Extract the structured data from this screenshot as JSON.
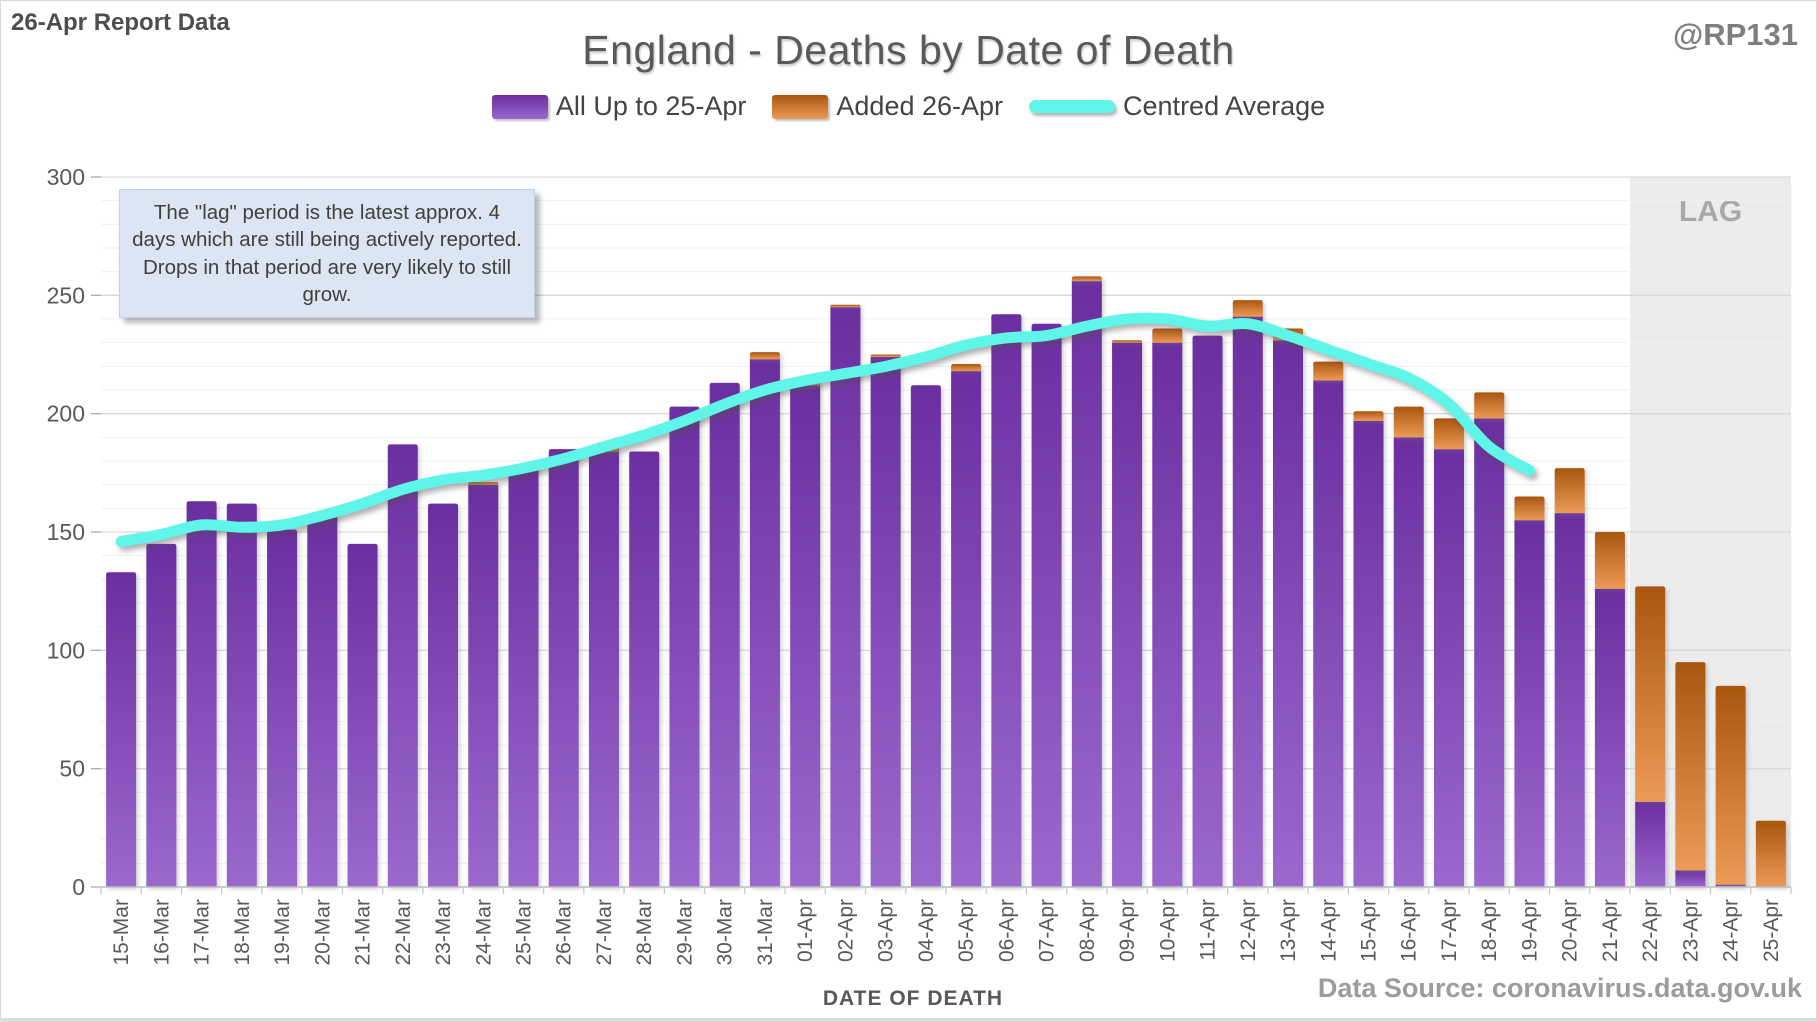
{
  "header": {
    "report_label": "26-Apr Report Data",
    "handle": "@RP131",
    "title": "England - Deaths by Date of Death"
  },
  "legend": [
    {
      "label": "All Up to 25-Apr",
      "swatch": "purple-gradient-bar"
    },
    {
      "label": "Added 26-Apr",
      "swatch": "orange-gradient-bar"
    },
    {
      "label": "Centred Average",
      "swatch": "cyan-line"
    }
  ],
  "annotation": {
    "text": "The \"lag\" period is the latest approx. 4 days which are still being actively reported.  Drops in that period are very likely to still grow."
  },
  "lag": {
    "label": "LAG",
    "start_category": "22-Apr"
  },
  "axes": {
    "y": {
      "min": 0,
      "max": 300,
      "major_step": 50,
      "minor_step": 10
    },
    "x": {
      "title": "DATE OF DEATH"
    }
  },
  "footer": {
    "source": "Data Source: coronavirus.data.gov.uk"
  },
  "colors": {
    "purple_top": "#6b2e9f",
    "purple_bottom": "#9b68ce",
    "orange_top": "#a9560f",
    "orange_bottom": "#ec9a57",
    "average_line": "#5ff5e8",
    "lag_fill": "#ececec",
    "lag_text": "#a8a8a8",
    "grid_major": "#d9d9d9",
    "grid_minor": "#f1f1f1",
    "axis_line": "#bfbfbf",
    "axis_text": "#595959"
  },
  "chart_data": {
    "type": "bar",
    "stacked": true,
    "title": "England - Deaths by Date of Death",
    "xlabel": "DATE OF DEATH",
    "ylabel": "",
    "ylim": [
      0,
      300
    ],
    "grid": true,
    "legend_position": "top",
    "lag_region_categories": [
      "22-Apr",
      "23-Apr",
      "24-Apr",
      "25-Apr"
    ],
    "categories": [
      "15-Mar",
      "16-Mar",
      "17-Mar",
      "18-Mar",
      "19-Mar",
      "20-Mar",
      "21-Mar",
      "22-Mar",
      "23-Mar",
      "24-Mar",
      "25-Mar",
      "26-Mar",
      "27-Mar",
      "28-Mar",
      "29-Mar",
      "30-Mar",
      "31-Mar",
      "01-Apr",
      "02-Apr",
      "03-Apr",
      "04-Apr",
      "05-Apr",
      "06-Apr",
      "07-Apr",
      "08-Apr",
      "09-Apr",
      "10-Apr",
      "11-Apr",
      "12-Apr",
      "13-Apr",
      "14-Apr",
      "15-Apr",
      "16-Apr",
      "17-Apr",
      "18-Apr",
      "19-Apr",
      "20-Apr",
      "21-Apr",
      "22-Apr",
      "23-Apr",
      "24-Apr",
      "25-Apr"
    ],
    "series": [
      {
        "name": "All Up to 25-Apr",
        "type": "bar",
        "values": [
          133,
          145,
          163,
          162,
          151,
          157,
          145,
          187,
          162,
          170,
          178,
          185,
          184,
          184,
          203,
          213,
          223,
          212,
          245,
          224,
          212,
          218,
          242,
          238,
          256,
          230,
          230,
          233,
          241,
          231,
          214,
          197,
          190,
          185,
          198,
          155,
          158,
          126,
          36,
          7,
          1,
          0
        ]
      },
      {
        "name": "Added 26-Apr",
        "type": "bar",
        "values": [
          0,
          0,
          0,
          0,
          0,
          0,
          0,
          0,
          0,
          1,
          0,
          0,
          2,
          0,
          0,
          0,
          3,
          2,
          1,
          1,
          0,
          3,
          0,
          0,
          2,
          1,
          6,
          0,
          7,
          5,
          8,
          4,
          13,
          13,
          11,
          10,
          19,
          24,
          91,
          88,
          84,
          28
        ]
      },
      {
        "name": "Centred Average",
        "type": "line",
        "values": [
          146,
          149,
          153,
          152,
          153,
          157,
          162,
          168,
          172,
          174,
          177,
          181,
          186,
          191,
          197,
          204,
          210,
          214,
          217,
          220,
          224,
          229,
          232,
          233,
          237,
          240,
          240,
          237,
          238,
          233,
          227,
          221,
          215,
          204,
          186,
          176,
          null,
          null,
          null,
          null,
          null,
          null
        ]
      }
    ]
  }
}
